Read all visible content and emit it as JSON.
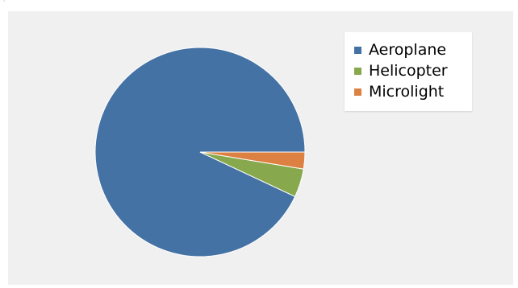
{
  "chart_data": {
    "type": "pie",
    "title": "",
    "legend_position": "top-right",
    "categories": [
      "Aeroplane",
      "Helicopter",
      "Microlight"
    ],
    "values": [
      93.0,
      4.4,
      2.6
    ],
    "colors": [
      "#4472a4",
      "#87a84c",
      "#dd8142"
    ],
    "start_angle_deg": 0,
    "direction": "counterclockwise"
  }
}
